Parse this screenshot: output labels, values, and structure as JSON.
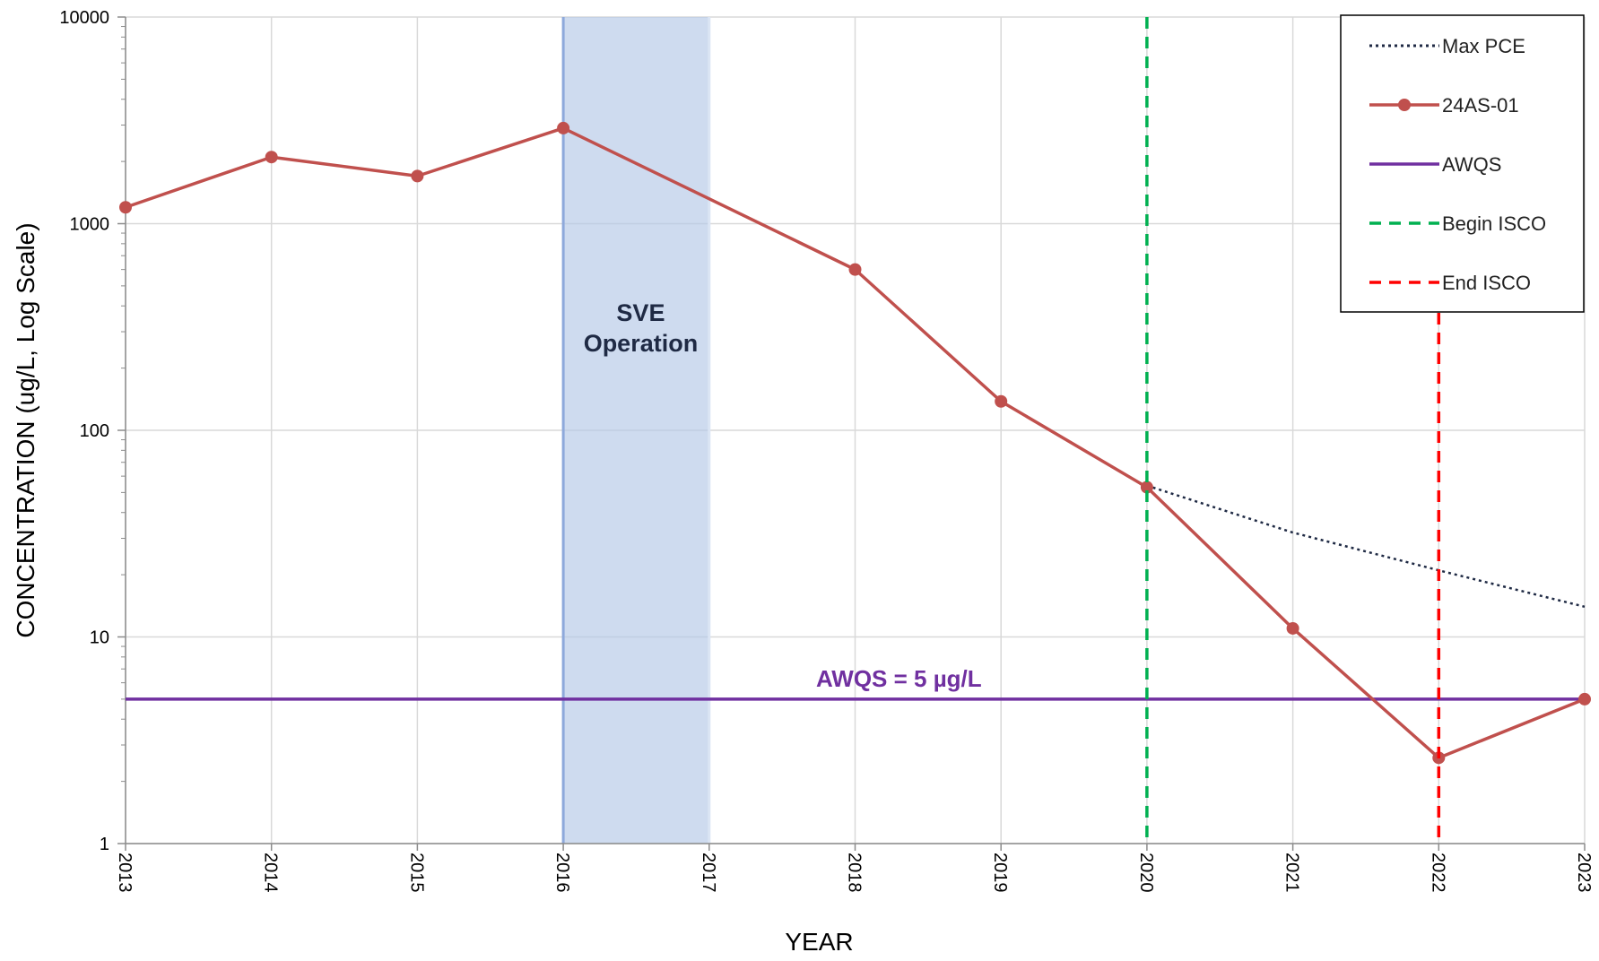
{
  "chart_data": {
    "type": "line",
    "xlabel": "YEAR",
    "ylabel": "CONCENTRATION (ug/L, Log Scale)",
    "y_scale": "log",
    "ylim": [
      1,
      10000
    ],
    "xlim": [
      2013,
      2023
    ],
    "x_ticks": [
      "2013",
      "2014",
      "2015",
      "2016",
      "2017",
      "2018",
      "2019",
      "2020",
      "2021",
      "2022",
      "2023"
    ],
    "y_ticks": [
      "1",
      "10",
      "100",
      "1000",
      "10000"
    ],
    "grid": true,
    "legend_position": "top-right",
    "series": [
      {
        "name": "Max PCE",
        "style": "dotted",
        "color": "#1f2a44",
        "x": [
          2020,
          2021,
          2022,
          2023
        ],
        "y": [
          54,
          32,
          21,
          14
        ]
      },
      {
        "name": "24AS-01",
        "style": "solid-markers",
        "color": "#c0504d",
        "x": [
          2013,
          2014,
          2015,
          2016,
          2018,
          2019,
          2020,
          2021,
          2022,
          2023
        ],
        "y": [
          1200,
          2100,
          1700,
          2900,
          600,
          138,
          53,
          11,
          2.6,
          5
        ]
      },
      {
        "name": "AWQS",
        "style": "solid",
        "color": "#7030a0",
        "x": [
          2013,
          2023
        ],
        "y": [
          5,
          5
        ]
      },
      {
        "name": "Begin ISCO",
        "style": "dashed-vertical",
        "color": "#00b050",
        "x": [
          2020
        ]
      },
      {
        "name": "End ISCO",
        "style": "dashed-vertical",
        "color": "#ff0000",
        "x": [
          2022
        ]
      }
    ],
    "shaded_region": {
      "label_line1": "SVE",
      "label_line2": "Operation",
      "x_start": 2016,
      "x_end": 2017,
      "color": "#b4c7e7"
    },
    "annotations": {
      "awqs_label": "AWQS = 5 µg/L",
      "awqs_color": "#7030a0"
    }
  }
}
